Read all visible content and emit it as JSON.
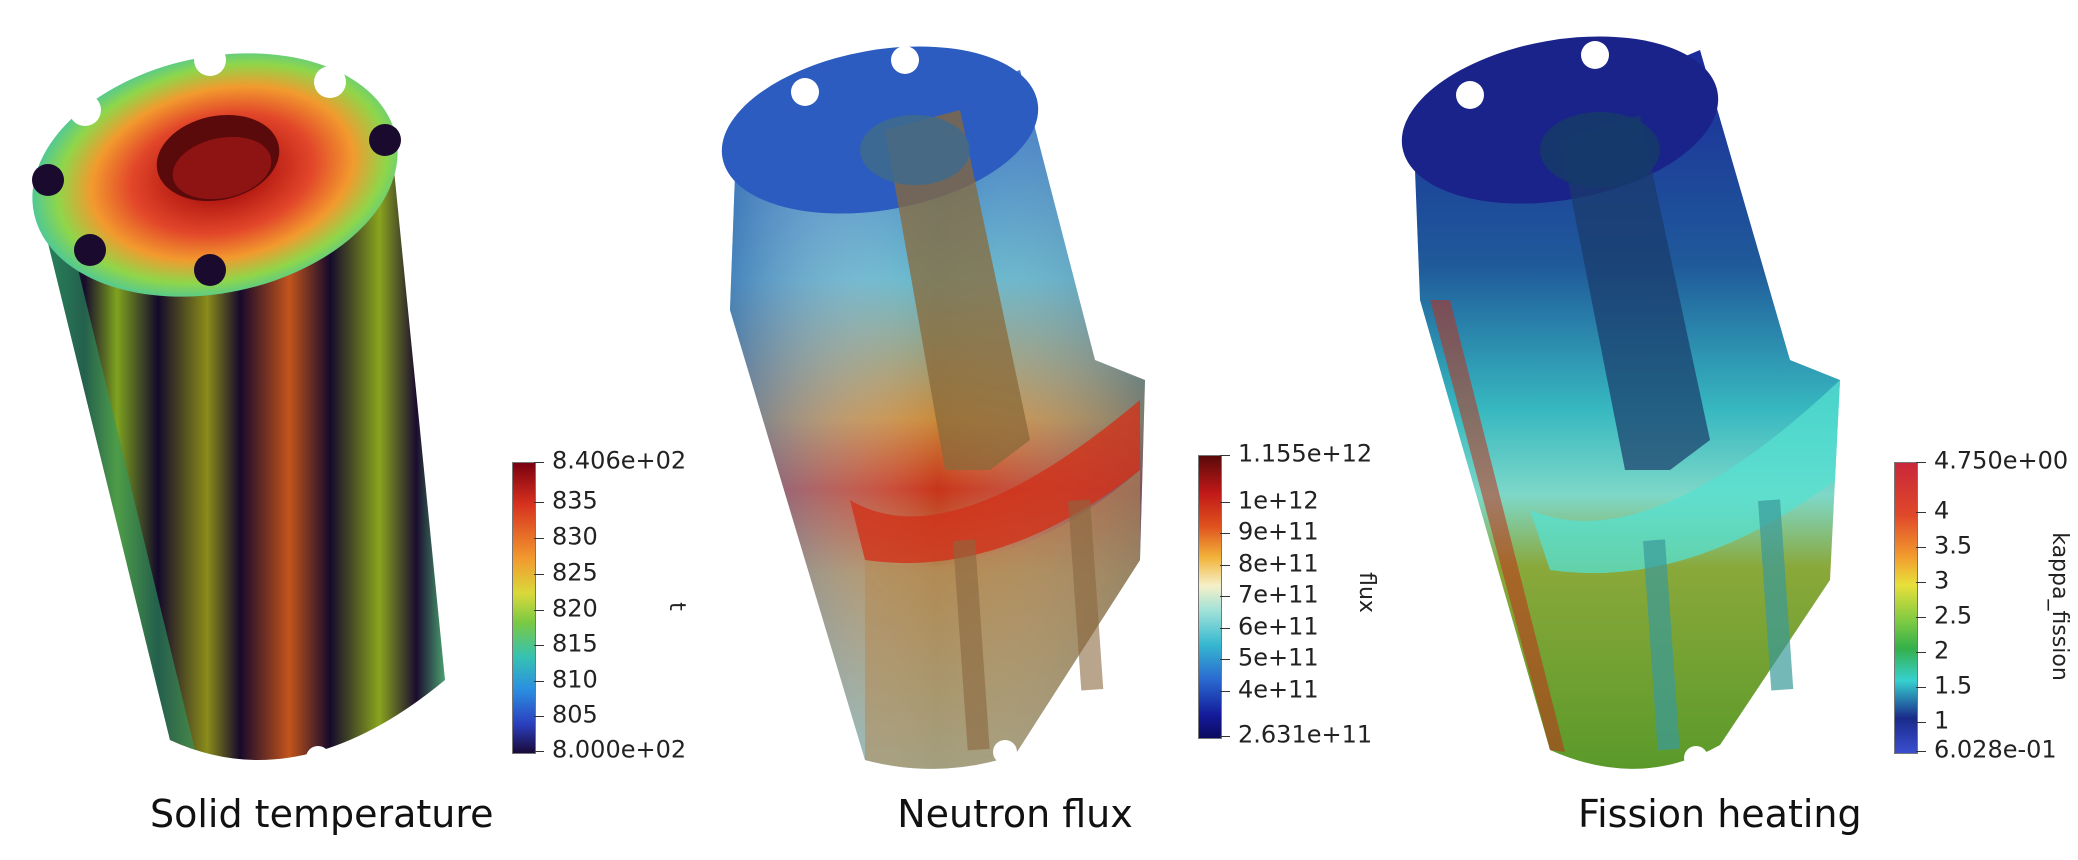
{
  "panels": [
    {
      "caption": "Solid temperature",
      "colorbar": {
        "title": "t",
        "ticks": [
          "8.406e+02",
          "835",
          "830",
          "825",
          "820",
          "815",
          "810",
          "805",
          "8.000e+02"
        ]
      }
    },
    {
      "caption": "Neutron flux",
      "colorbar": {
        "title": "flux",
        "ticks": [
          "1.155e+12",
          "1e+12",
          "9e+11",
          "8e+11",
          "7e+11",
          "6e+11",
          "5e+11",
          "4e+11",
          "2.631e+11"
        ]
      }
    },
    {
      "caption": "Fission heating",
      "colorbar": {
        "title": "kappa_fission",
        "ticks": [
          "4.750e+00",
          "4",
          "3.5",
          "3",
          "2.5",
          "2",
          "1.5",
          "1",
          "6.028e-01"
        ]
      }
    }
  ],
  "colors": {
    "jet_top": "#7a0010",
    "jet_red": "#d7301f",
    "jet_yellow": "#f2c14e",
    "jet_green": "#7ac943",
    "jet_cyan": "#4bd1d0",
    "jet_blue": "#2b5fd9",
    "jet_dark": "#1a0a3a"
  }
}
